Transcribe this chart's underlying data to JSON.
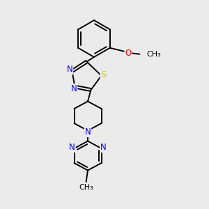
{
  "background_color": "#ebebeb",
  "bond_color": "#000000",
  "atom_colors": {
    "N": "#0000ee",
    "S": "#cccc00",
    "O": "#dd0000",
    "C": "#000000"
  },
  "lw": 1.4,
  "fs": 8.5
}
